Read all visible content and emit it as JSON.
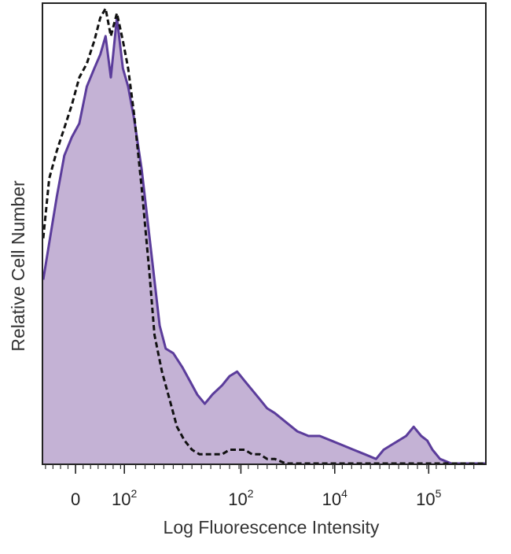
{
  "chart_data": {
    "type": "area",
    "title": "",
    "xlabel": "Log Fluorescence Intensity",
    "ylabel": "Relative Cell Number",
    "x_scale": "biexponential",
    "xlim": [
      -0.43,
      5.45
    ],
    "ylim": [
      0,
      1.0
    ],
    "grid": false,
    "legend": "none",
    "x_ticks": [
      {
        "pos": 0.0,
        "base": "0",
        "exp": ""
      },
      {
        "pos": 0.65,
        "base": "10",
        "exp": "2"
      },
      {
        "pos": 2.2,
        "base": "10",
        "exp": "2"
      },
      {
        "pos": 3.45,
        "base": "10",
        "exp": "4"
      },
      {
        "pos": 4.7,
        "base": "10",
        "exp": "5"
      }
    ],
    "series": [
      {
        "style": "filled-solid",
        "color": "#5b3c9b",
        "fill": "#c4b2d5",
        "x": [
          -0.43,
          -0.35,
          -0.25,
          -0.15,
          -0.05,
          0.05,
          0.15,
          0.25,
          0.33,
          0.4,
          0.47,
          0.55,
          0.63,
          0.7,
          0.78,
          0.88,
          1.0,
          1.12,
          1.2,
          1.3,
          1.42,
          1.52,
          1.62,
          1.72,
          1.82,
          1.95,
          2.05,
          2.15,
          2.25,
          2.35,
          2.45,
          2.55,
          2.65,
          2.8,
          2.95,
          3.1,
          3.25,
          3.4,
          3.55,
          3.7,
          3.85,
          4.0,
          4.1,
          4.2,
          4.3,
          4.4,
          4.5,
          4.6,
          4.68,
          4.75,
          4.85,
          5.0,
          5.2,
          5.45
        ],
        "y": [
          0.4,
          0.48,
          0.58,
          0.67,
          0.71,
          0.74,
          0.82,
          0.86,
          0.89,
          0.93,
          0.84,
          0.97,
          0.86,
          0.82,
          0.75,
          0.64,
          0.47,
          0.3,
          0.25,
          0.24,
          0.21,
          0.18,
          0.15,
          0.13,
          0.15,
          0.17,
          0.19,
          0.2,
          0.18,
          0.16,
          0.14,
          0.12,
          0.11,
          0.09,
          0.07,
          0.06,
          0.06,
          0.05,
          0.04,
          0.03,
          0.02,
          0.01,
          0.03,
          0.04,
          0.05,
          0.06,
          0.08,
          0.06,
          0.05,
          0.03,
          0.01,
          0.0,
          0.0,
          0.0
        ]
      },
      {
        "style": "dashed",
        "color": "#111111",
        "x": [
          -0.43,
          -0.35,
          -0.25,
          -0.15,
          -0.05,
          0.05,
          0.15,
          0.25,
          0.33,
          0.4,
          0.47,
          0.55,
          0.63,
          0.7,
          0.78,
          0.88,
          0.98,
          1.05,
          1.15,
          1.25,
          1.35,
          1.45,
          1.55,
          1.65,
          1.75,
          1.85,
          1.95,
          2.05,
          2.15,
          2.25,
          2.35,
          2.45,
          2.55,
          2.65,
          2.8,
          3.0,
          3.3,
          3.7,
          4.2,
          4.8,
          5.45
        ],
        "y": [
          0.49,
          0.62,
          0.68,
          0.73,
          0.78,
          0.84,
          0.87,
          0.92,
          0.97,
          0.99,
          0.93,
          0.98,
          0.92,
          0.86,
          0.76,
          0.6,
          0.42,
          0.28,
          0.2,
          0.14,
          0.08,
          0.05,
          0.03,
          0.02,
          0.02,
          0.02,
          0.02,
          0.03,
          0.03,
          0.03,
          0.02,
          0.02,
          0.01,
          0.01,
          0.0,
          0.0,
          0.0,
          0.0,
          0.0,
          0.0,
          0.0
        ]
      }
    ]
  }
}
